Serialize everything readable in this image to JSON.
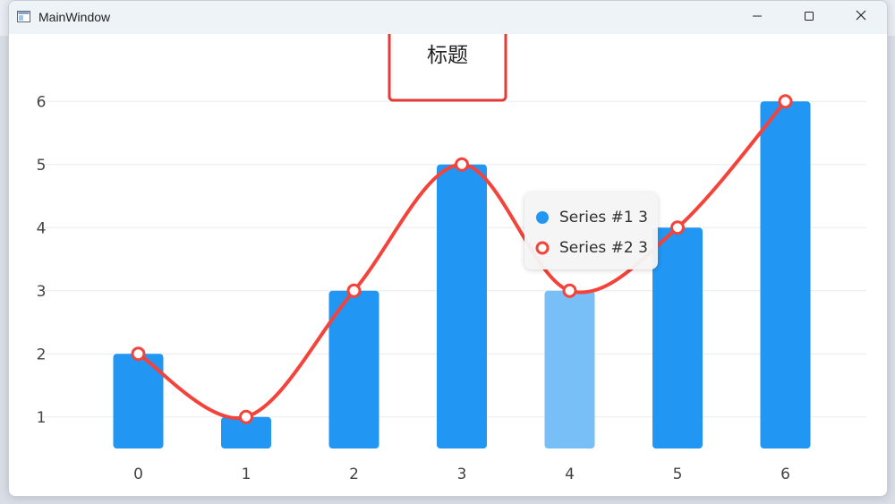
{
  "window": {
    "title": "MainWindow"
  },
  "chart_data": {
    "type": "bar",
    "title": "标题",
    "categories": [
      "0",
      "1",
      "2",
      "3",
      "4",
      "5",
      "6"
    ],
    "x": [
      0,
      1,
      2,
      3,
      4,
      5,
      6
    ],
    "ylim": [
      0.5,
      6.5
    ],
    "yticks": [
      1,
      2,
      3,
      4,
      5,
      6
    ],
    "grid": true,
    "legend": "none",
    "highlighted_index": 4,
    "series": [
      {
        "name": "Series #1",
        "type": "bar",
        "values": [
          2,
          1,
          3,
          5,
          3,
          4,
          6
        ],
        "color": "#2196F3",
        "highlight_color": "#78BFF8"
      },
      {
        "name": "Series #2",
        "type": "line",
        "values": [
          2,
          1,
          3,
          5,
          3,
          4,
          6
        ],
        "color": "#F4433A",
        "smooth": true
      }
    ],
    "title_box_color": "#E53935"
  },
  "tooltip": {
    "rows": [
      {
        "label": "Series #1 3",
        "color": "#2196F3",
        "marker": "filled-circle"
      },
      {
        "label": "Series #2 3",
        "color": "#F4433A",
        "marker": "ring"
      }
    ]
  },
  "icons": {
    "app": "window-app-icon",
    "minimize": "minimize-icon",
    "maximize": "maximize-icon",
    "close": "close-icon"
  }
}
